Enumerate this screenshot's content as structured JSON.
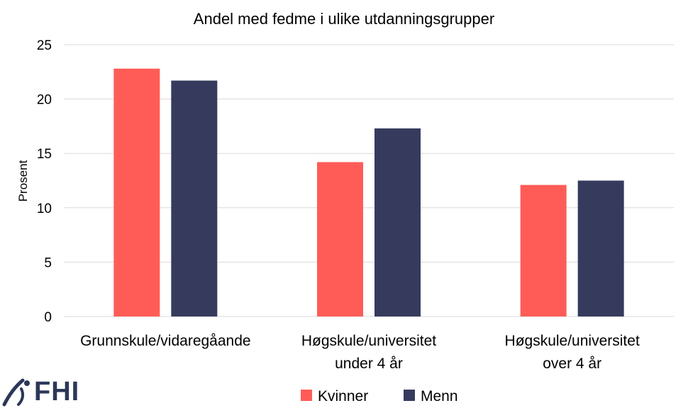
{
  "chart_data": {
    "type": "bar",
    "title": "Andel med fedme i ulike utdanningsgrupper",
    "ylabel": "Prosent",
    "xlabel": "",
    "ylim": [
      0,
      25
    ],
    "yticks": [
      0,
      5,
      10,
      15,
      20,
      25
    ],
    "categories": [
      [
        "Grunnskule/vidaregåande"
      ],
      [
        "Høgskule/universitet",
        "under 4 år"
      ],
      [
        "Høgskule/universitet",
        "over 4 år"
      ]
    ],
    "series": [
      {
        "name": "Kvinner",
        "color": "#ff5c57",
        "values": [
          22.8,
          14.2,
          12.1
        ]
      },
      {
        "name": "Menn",
        "color": "#363b5e",
        "values": [
          21.7,
          17.3,
          12.5
        ]
      }
    ],
    "grid": true,
    "legend": "bottom"
  },
  "logo": {
    "text": "FHI",
    "color": "#2c3759",
    "icon": "fhi-logo-icon"
  }
}
